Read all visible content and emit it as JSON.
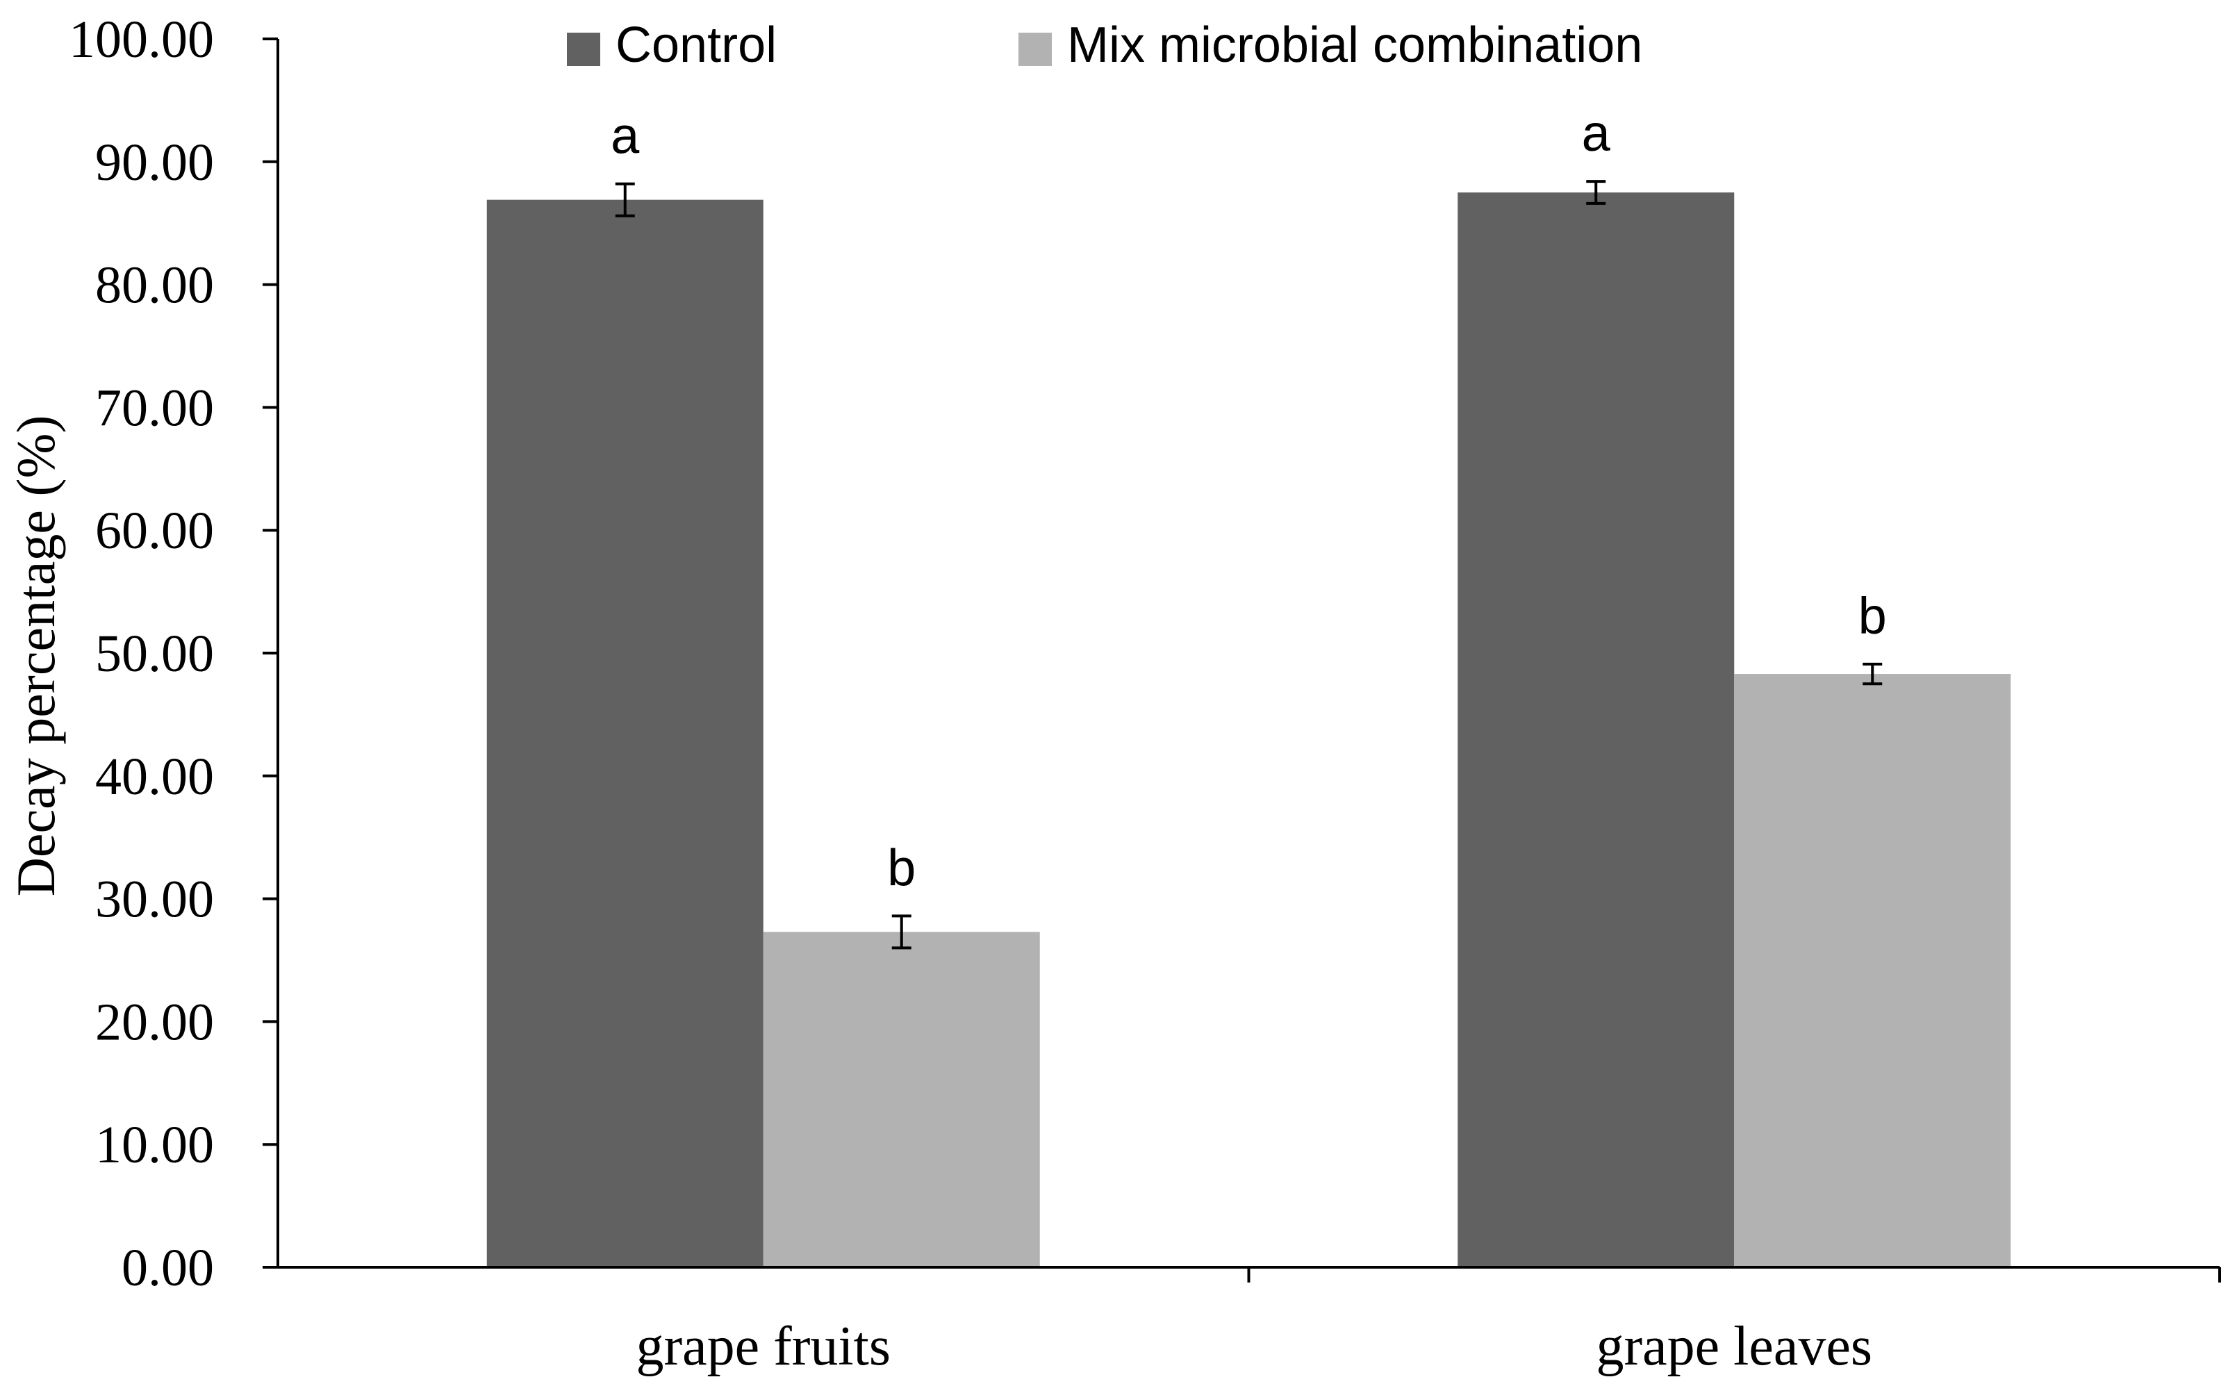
{
  "chart_data": {
    "type": "bar",
    "title": "",
    "xlabel": "",
    "ylabel": "Decay percentage (%)",
    "ylim": [
      0,
      100
    ],
    "y_ticks": [
      "0.00",
      "10.00",
      "20.00",
      "30.00",
      "40.00",
      "50.00",
      "60.00",
      "70.00",
      "80.00",
      "90.00",
      "100.00"
    ],
    "categories": [
      "grape fruits",
      "grape leaves"
    ],
    "series": [
      {
        "name": "Control",
        "color": "#616161",
        "values": [
          86.9,
          87.5
        ],
        "errors": [
          1.3,
          0.9
        ],
        "labels": [
          "a",
          "a"
        ]
      },
      {
        "name": "Mix microbial combination",
        "color": "#b2b2b2",
        "values": [
          27.3,
          48.3
        ],
        "errors": [
          1.3,
          0.8
        ],
        "labels": [
          "b",
          "b"
        ]
      }
    ],
    "legend": "top-center",
    "grid": false
  }
}
